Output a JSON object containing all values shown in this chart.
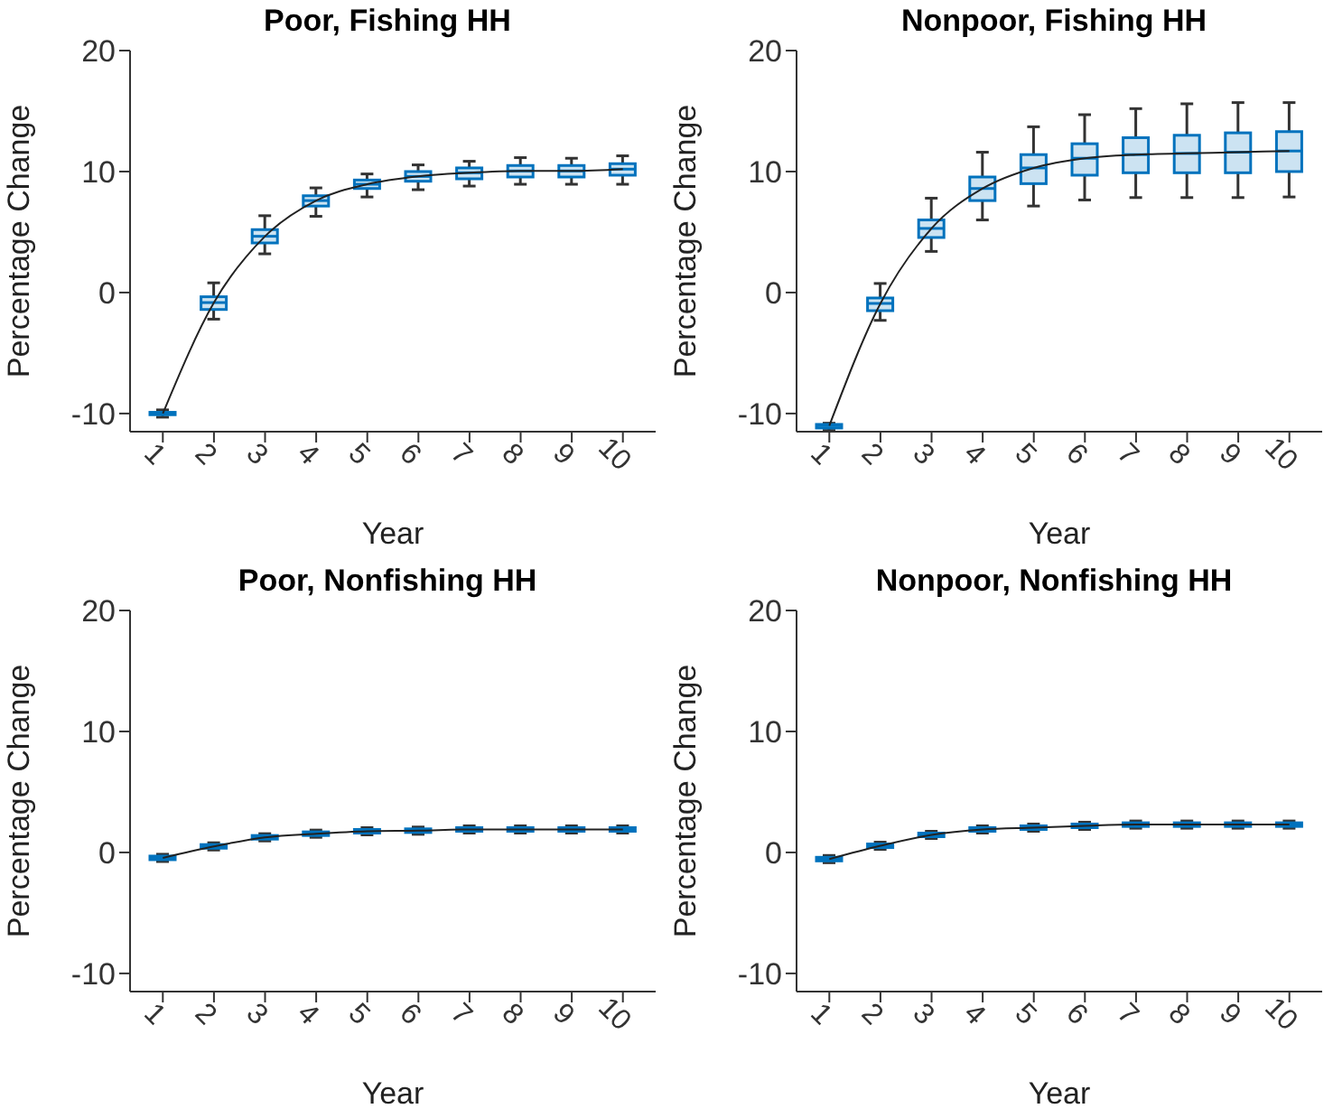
{
  "chart_data": [
    {
      "type": "box",
      "title": "Poor, Fishing HH",
      "xlabel": "Year",
      "ylabel": "Percentage Change",
      "categories": [
        "1",
        "2",
        "3",
        "4",
        "5",
        "6",
        "7",
        "8",
        "9",
        "10"
      ],
      "color": "#0072bd",
      "ylim": [
        -11.5,
        20
      ],
      "yticks": [
        -10,
        0,
        10,
        20
      ],
      "grid": false,
      "boxes": [
        {
          "low": -10.3,
          "q1": -10.1,
          "median": -10,
          "q3": -9.9,
          "high": -9.7
        },
        {
          "low": -2.2,
          "q1": -1.4,
          "median": -0.83,
          "q3": -0.35,
          "high": 0.8
        },
        {
          "low": 3.2,
          "q1": 4.1,
          "median": 4.65,
          "q3": 5.2,
          "high": 6.35
        },
        {
          "low": 6.3,
          "q1": 7.15,
          "median": 7.6,
          "q3": 8.0,
          "high": 8.65
        },
        {
          "low": 7.9,
          "q1": 8.6,
          "median": 8.95,
          "q3": 9.3,
          "high": 9.8
        },
        {
          "low": 8.5,
          "q1": 9.2,
          "median": 9.6,
          "q3": 10.0,
          "high": 10.55
        },
        {
          "low": 8.8,
          "q1": 9.4,
          "median": 9.9,
          "q3": 10.3,
          "high": 10.85
        },
        {
          "low": 8.95,
          "q1": 9.55,
          "median": 10.05,
          "q3": 10.5,
          "high": 11.15
        },
        {
          "low": 8.95,
          "q1": 9.55,
          "median": 10.05,
          "q3": 10.5,
          "high": 11.1
        },
        {
          "low": 8.95,
          "q1": 9.7,
          "median": 10.2,
          "q3": 10.65,
          "high": 11.3
        }
      ],
      "series": [
        {
          "type": "line",
          "color": "#222222",
          "values": [
            -10,
            -0.83,
            4.65,
            7.6,
            8.95,
            9.6,
            9.9,
            10.05,
            10.05,
            10.2
          ]
        }
      ]
    },
    {
      "type": "box",
      "title": "Nonpoor, Fishing HH",
      "xlabel": "Year",
      "ylabel": "Percentage Change",
      "categories": [
        "1",
        "2",
        "3",
        "4",
        "5",
        "6",
        "7",
        "8",
        "9",
        "10"
      ],
      "color": "#0072bd",
      "ylim": [
        -11.5,
        20
      ],
      "yticks": [
        -10,
        0,
        10,
        20
      ],
      "grid": false,
      "boxes": [
        {
          "low": -11.4,
          "q1": -11.2,
          "median": -11,
          "q3": -10.9,
          "high": -10.8
        },
        {
          "low": -2.3,
          "q1": -1.5,
          "median": -0.9,
          "q3": -0.45,
          "high": 0.75
        },
        {
          "low": 3.4,
          "q1": 4.55,
          "median": 5.3,
          "q3": 6.0,
          "high": 7.8
        },
        {
          "low": 6.0,
          "q1": 7.6,
          "median": 8.6,
          "q3": 9.55,
          "high": 11.6
        },
        {
          "low": 7.15,
          "q1": 9.0,
          "median": 10.3,
          "q3": 11.4,
          "high": 13.7
        },
        {
          "low": 7.65,
          "q1": 9.7,
          "median": 11.1,
          "q3": 12.3,
          "high": 14.7
        },
        {
          "low": 7.85,
          "q1": 9.9,
          "median": 11.4,
          "q3": 12.8,
          "high": 15.2
        },
        {
          "low": 7.85,
          "q1": 9.9,
          "median": 11.5,
          "q3": 13.0,
          "high": 15.6
        },
        {
          "low": 7.85,
          "q1": 9.9,
          "median": 11.6,
          "q3": 13.2,
          "high": 15.7
        },
        {
          "low": 7.9,
          "q1": 10.0,
          "median": 11.7,
          "q3": 13.3,
          "high": 15.7
        }
      ],
      "series": [
        {
          "type": "line",
          "color": "#222222",
          "values": [
            -11,
            -0.9,
            5.3,
            8.6,
            10.3,
            11.1,
            11.4,
            11.5,
            11.6,
            11.7
          ]
        }
      ]
    },
    {
      "type": "box",
      "title": "Poor, Nonfishing HH",
      "xlabel": "Year",
      "ylabel": "Percentage Change",
      "categories": [
        "1",
        "2",
        "3",
        "4",
        "5",
        "6",
        "7",
        "8",
        "9",
        "10"
      ],
      "color": "#0072bd",
      "ylim": [
        -11.5,
        20
      ],
      "yticks": [
        -10,
        0,
        10,
        20
      ],
      "grid": false,
      "boxes": [
        {
          "low": -0.75,
          "q1": -0.6,
          "median": -0.45,
          "q3": -0.3,
          "high": -0.15
        },
        {
          "low": 0.2,
          "q1": 0.35,
          "median": 0.5,
          "q3": 0.65,
          "high": 0.8
        },
        {
          "low": 0.95,
          "q1": 1.1,
          "median": 1.25,
          "q3": 1.4,
          "high": 1.55
        },
        {
          "low": 1.25,
          "q1": 1.4,
          "median": 1.55,
          "q3": 1.7,
          "high": 1.85
        },
        {
          "low": 1.45,
          "q1": 1.6,
          "median": 1.75,
          "q3": 1.9,
          "high": 2.05
        },
        {
          "low": 1.5,
          "q1": 1.65,
          "median": 1.8,
          "q3": 1.95,
          "high": 2.1
        },
        {
          "low": 1.6,
          "q1": 1.75,
          "median": 1.9,
          "q3": 2.05,
          "high": 2.2
        },
        {
          "low": 1.6,
          "q1": 1.75,
          "median": 1.9,
          "q3": 2.05,
          "high": 2.2
        },
        {
          "low": 1.6,
          "q1": 1.75,
          "median": 1.9,
          "q3": 2.05,
          "high": 2.2
        },
        {
          "low": 1.6,
          "q1": 1.75,
          "median": 1.9,
          "q3": 2.05,
          "high": 2.2
        }
      ],
      "series": [
        {
          "type": "line",
          "color": "#222222",
          "values": [
            -0.45,
            0.5,
            1.25,
            1.55,
            1.75,
            1.8,
            1.9,
            1.9,
            1.9,
            1.9
          ]
        }
      ]
    },
    {
      "type": "box",
      "title": "Nonpoor, Nonfishing HH",
      "xlabel": "Year",
      "ylabel": "Percentage Change",
      "categories": [
        "1",
        "2",
        "3",
        "4",
        "5",
        "6",
        "7",
        "8",
        "9",
        "10"
      ],
      "color": "#0072bd",
      "ylim": [
        -11.5,
        20
      ],
      "yticks": [
        -10,
        0,
        10,
        20
      ],
      "grid": false,
      "boxes": [
        {
          "low": -0.85,
          "q1": -0.7,
          "median": -0.55,
          "q3": -0.4,
          "high": -0.25
        },
        {
          "low": 0.25,
          "q1": 0.4,
          "median": 0.55,
          "q3": 0.7,
          "high": 0.85
        },
        {
          "low": 1.15,
          "q1": 1.3,
          "median": 1.45,
          "q3": 1.6,
          "high": 1.75
        },
        {
          "low": 1.6,
          "q1": 1.75,
          "median": 1.9,
          "q3": 2.05,
          "high": 2.2
        },
        {
          "low": 1.75,
          "q1": 1.9,
          "median": 2.05,
          "q3": 2.2,
          "high": 2.35
        },
        {
          "low": 1.9,
          "q1": 2.05,
          "median": 2.2,
          "q3": 2.35,
          "high": 2.5
        },
        {
          "low": 2.0,
          "q1": 2.15,
          "median": 2.3,
          "q3": 2.45,
          "high": 2.6
        },
        {
          "low": 2.0,
          "q1": 2.15,
          "median": 2.3,
          "q3": 2.45,
          "high": 2.6
        },
        {
          "low": 2.0,
          "q1": 2.15,
          "median": 2.3,
          "q3": 2.45,
          "high": 2.6
        },
        {
          "low": 2.0,
          "q1": 2.15,
          "median": 2.3,
          "q3": 2.45,
          "high": 2.6
        }
      ],
      "series": [
        {
          "type": "line",
          "color": "#222222",
          "values": [
            -0.55,
            0.55,
            1.45,
            1.9,
            2.05,
            2.2,
            2.3,
            2.3,
            2.3,
            2.3
          ]
        }
      ]
    }
  ]
}
